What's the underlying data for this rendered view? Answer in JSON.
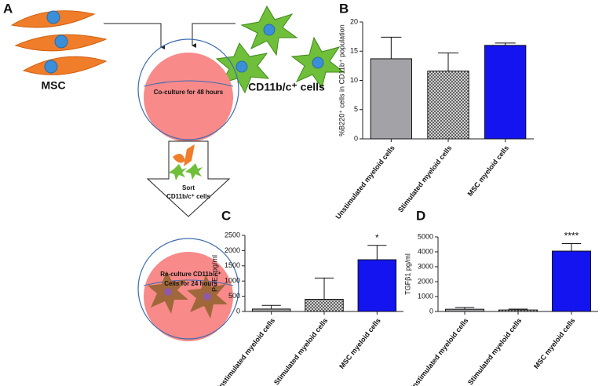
{
  "diagram": {
    "msc_label": "MSC",
    "cells_label": "CD11b/c⁺ cells",
    "coculture": "Co-culture for 48 hours",
    "sort": [
      "Sort",
      "CD11b/c⁺ cells"
    ],
    "reculture": [
      "Re-culture CD11b/c⁺",
      "Cells for 24 hours"
    ]
  },
  "panel_labels": [
    "A"
  ],
  "chart_data": [
    {
      "panel": "B",
      "type": "bar",
      "ylabel": "%B220⁺ cells in CD11b⁺ population",
      "categories": [
        "Unstimulated myeloid cells",
        "Stimulated myeloid cells",
        "MSC myeloid cells"
      ],
      "values": [
        13.7,
        11.6,
        16
      ],
      "errors": [
        3.7,
        3.1,
        0.4
      ],
      "colors": [
        "#a3a3a7",
        "#7a7a7a",
        "#1414f0"
      ],
      "patterns": [
        "solid",
        "crosshatch",
        "solid"
      ],
      "ylim": [
        0,
        20
      ],
      "yticks": [
        0,
        5,
        10,
        15,
        20
      ]
    },
    {
      "panel": "C",
      "type": "bar",
      "ylabel": "PGE₂ pg/ml",
      "categories": [
        "Unstimulated myeloid cells",
        "Stimulated myeloid cells",
        "MSC myeloid cells"
      ],
      "values": [
        80,
        400,
        1700
      ],
      "errors": [
        120,
        700,
        470
      ],
      "colors": [
        "#a3a3a7",
        "#7a7a7a",
        "#1414f0"
      ],
      "patterns": [
        "solid",
        "crosshatch",
        "solid"
      ],
      "ylim": [
        0,
        2500
      ],
      "yticks": [
        0,
        500,
        1000,
        1500,
        2000,
        2500
      ],
      "annotation": "*"
    },
    {
      "panel": "D",
      "type": "bar",
      "ylabel": "TGFβ1 pg/ml",
      "categories": [
        "Unstimulated myeloid cells",
        "Stimulated myeloid cells",
        "MSC myeloid cells"
      ],
      "values": [
        150,
        100,
        4050
      ],
      "errors": [
        120,
        60,
        500
      ],
      "colors": [
        "#a3a3a7",
        "#7a7a7a",
        "#1414f0"
      ],
      "patterns": [
        "solid",
        "crosshatch",
        "solid"
      ],
      "ylim": [
        0,
        5000
      ],
      "yticks": [
        0,
        1000,
        2000,
        3000,
        4000,
        5000
      ],
      "annotation": "****"
    }
  ]
}
